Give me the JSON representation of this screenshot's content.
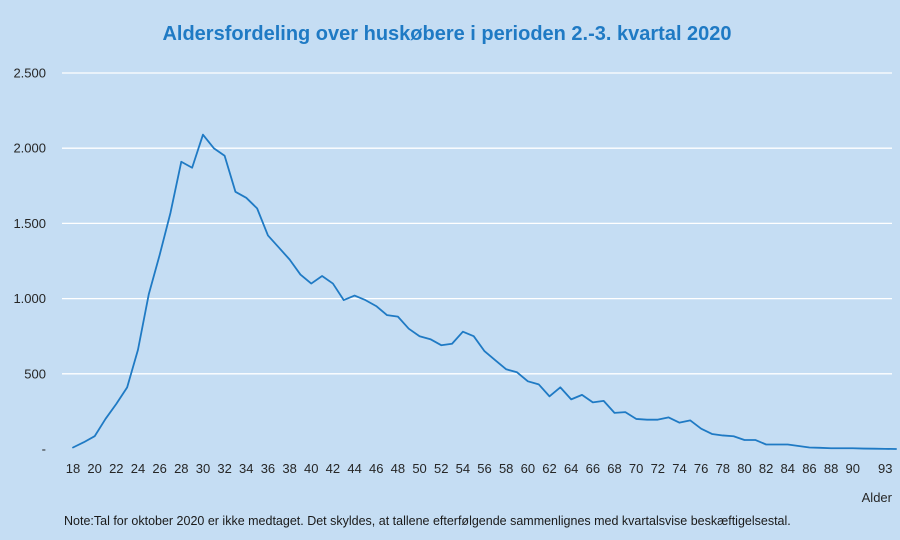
{
  "chart_data": {
    "type": "line",
    "title": "Aldersfordeling over huskøbere i perioden 2.-3. kvartal 2020",
    "xlabel": "Alder",
    "ylabel": "",
    "x": [
      18,
      19,
      20,
      21,
      22,
      23,
      24,
      25,
      26,
      27,
      28,
      29,
      30,
      31,
      32,
      33,
      34,
      35,
      36,
      37,
      38,
      39,
      40,
      41,
      42,
      43,
      44,
      45,
      46,
      47,
      48,
      49,
      50,
      51,
      52,
      53,
      54,
      55,
      56,
      57,
      58,
      59,
      60,
      61,
      62,
      63,
      64,
      65,
      66,
      67,
      68,
      69,
      70,
      71,
      72,
      73,
      74,
      75,
      76,
      77,
      78,
      79,
      80,
      81,
      82,
      83,
      84,
      85,
      86,
      87,
      88,
      89,
      90,
      91,
      92,
      93,
      94
    ],
    "x_tick_labels": [
      "18",
      "20",
      "22",
      "24",
      "26",
      "28",
      "30",
      "32",
      "34",
      "36",
      "38",
      "40",
      "42",
      "44",
      "46",
      "48",
      "50",
      "52",
      "54",
      "56",
      "58",
      "60",
      "62",
      "64",
      "66",
      "68",
      "70",
      "72",
      "74",
      "76",
      "78",
      "80",
      "82",
      "84",
      "86",
      "88",
      "90",
      "93"
    ],
    "series": [
      {
        "name": "",
        "values": [
          10,
          45,
          85,
          200,
          300,
          410,
          660,
          1030,
          1290,
          1570,
          1910,
          1870,
          2090,
          2000,
          1950,
          1710,
          1670,
          1600,
          1420,
          1340,
          1260,
          1160,
          1100,
          1150,
          1100,
          990,
          1020,
          990,
          950,
          890,
          880,
          800,
          750,
          730,
          690,
          700,
          780,
          750,
          650,
          590,
          530,
          510,
          450,
          430,
          350,
          410,
          330,
          360,
          310,
          320,
          240,
          245,
          200,
          195,
          195,
          210,
          175,
          190,
          135,
          100,
          90,
          85,
          60,
          60,
          30,
          30,
          30,
          20,
          10,
          8,
          5,
          5,
          5,
          3,
          2,
          1,
          0
        ]
      }
    ],
    "y_ticks": [
      {
        "value": 0,
        "label": "-"
      },
      {
        "value": 500,
        "label": "500"
      },
      {
        "value": 1000,
        "label": "1.000"
      },
      {
        "value": 1500,
        "label": "1.500"
      },
      {
        "value": 2000,
        "label": "2.000"
      },
      {
        "value": 2500,
        "label": "2.500"
      }
    ],
    "ylim": [
      0,
      2500
    ],
    "grid": true,
    "legend": "none",
    "line_color": "#1f7ac4",
    "background_color": "#c5ddf3",
    "note": "Note:Tal for oktober 2020 er ikke medtaget. Det skyldes, at tallene efterfølgende sammenlignes med kvartalsvise beskæftigelsestal."
  }
}
